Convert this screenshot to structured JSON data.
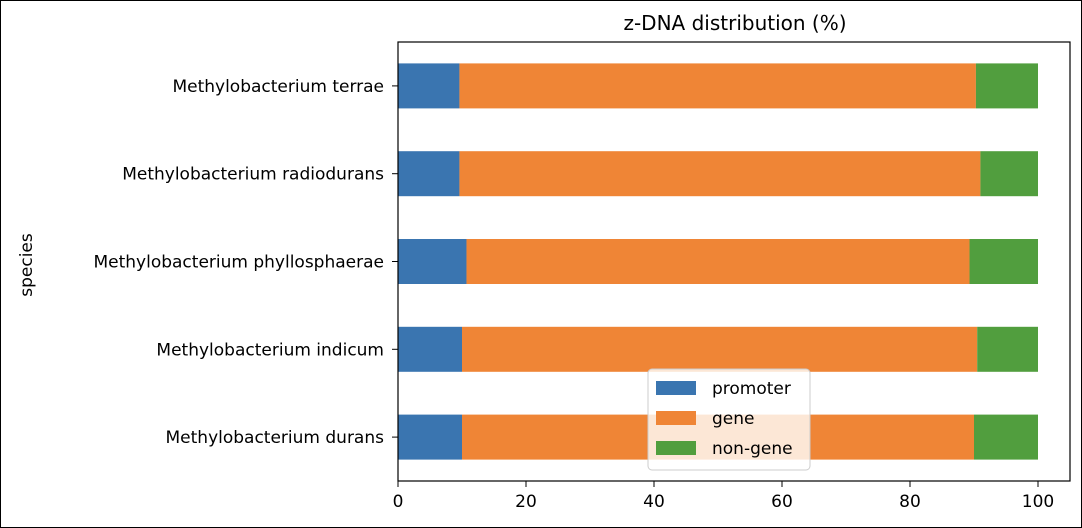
{
  "chart_data": {
    "type": "bar",
    "orientation": "horizontal",
    "stacked": true,
    "title": "z-DNA distribution (%)",
    "xlabel": "",
    "ylabel": "species",
    "xlim": [
      0,
      105
    ],
    "xticks": [
      "0",
      "20",
      "40",
      "60",
      "80",
      "100"
    ],
    "grid": false,
    "legend_position": "lower-center",
    "categories": [
      "Methylobacterium durans",
      "Methylobacterium indicum",
      "Methylobacterium phyllosphaerae",
      "Methylobacterium radiodurans",
      "Methylobacterium terrae"
    ],
    "series": [
      {
        "name": "promoter",
        "color": "#3a75b0",
        "values": [
          10.0,
          10.0,
          10.7,
          9.6,
          9.6
        ]
      },
      {
        "name": "gene",
        "color": "#ef8536",
        "values": [
          80.0,
          80.5,
          78.6,
          81.4,
          80.7
        ]
      },
      {
        "name": "non-gene",
        "color": "#519e3e",
        "values": [
          10.0,
          9.5,
          10.7,
          9.0,
          9.7
        ]
      }
    ]
  }
}
